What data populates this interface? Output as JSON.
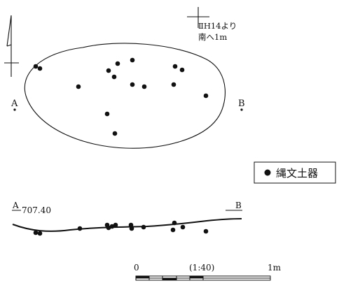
{
  "grid_marker": {
    "line1": "ⅡH14より",
    "line2": "南へ1m"
  },
  "section_points": {
    "a_label": "A",
    "b_label": "B"
  },
  "legend": {
    "symbol": "●",
    "label": "縄文土器"
  },
  "profile": {
    "a_label": "A",
    "elevation": "707.40",
    "b_label": "B"
  },
  "scale_bar": {
    "start": "0",
    "ratio": "(1:40)",
    "end": "1m"
  }
}
